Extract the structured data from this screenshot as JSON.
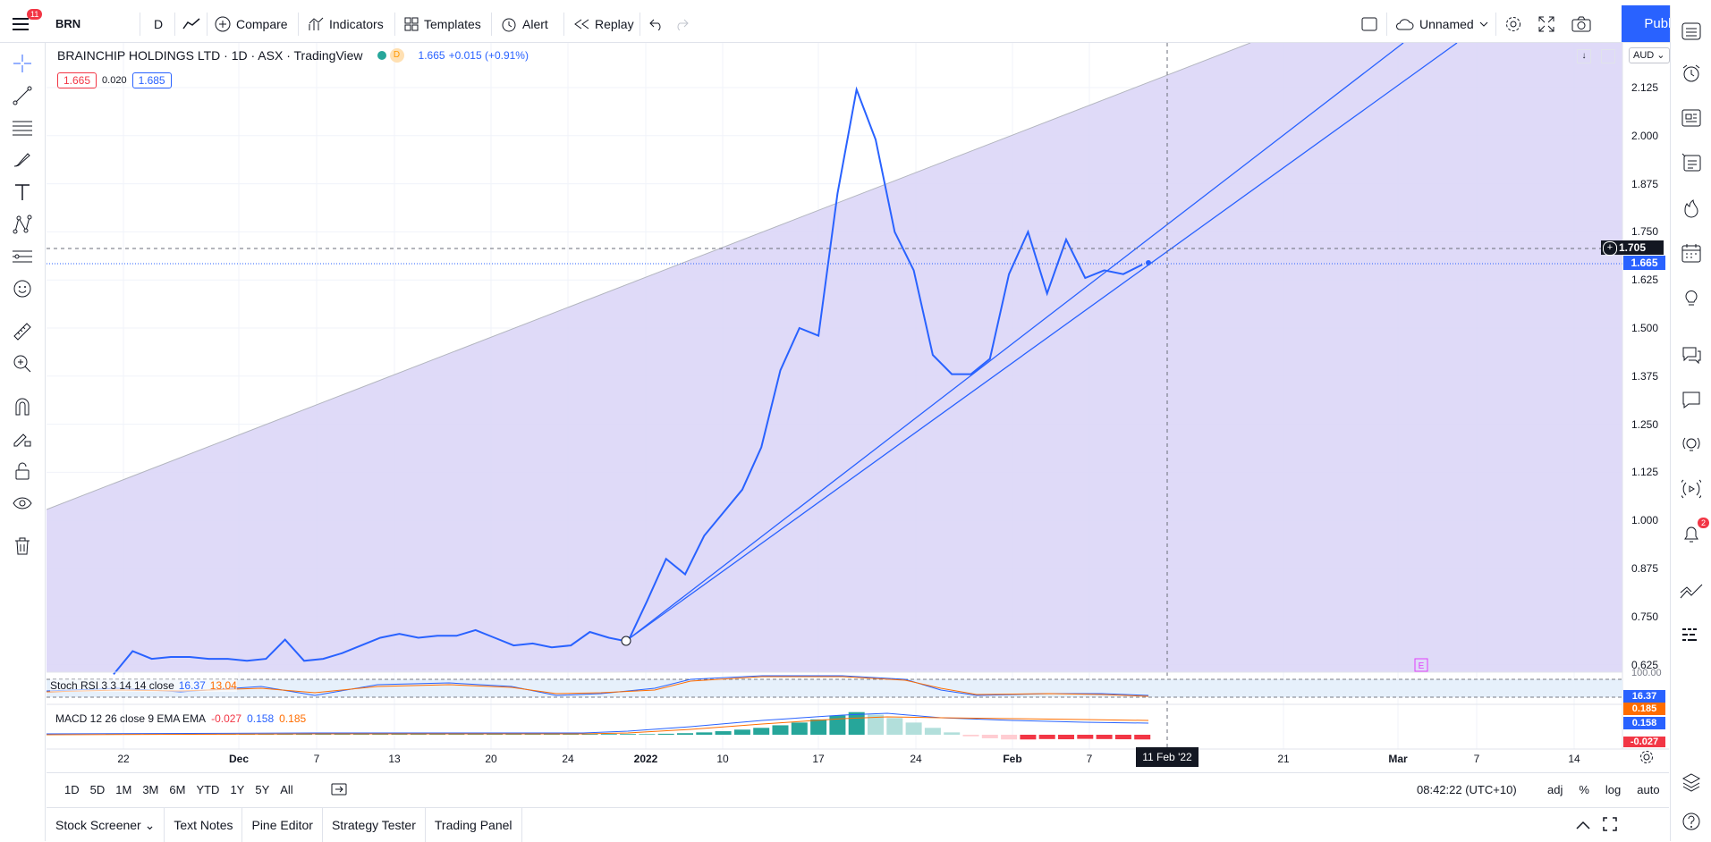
{
  "toolbar": {
    "menu_badge": "11",
    "symbol": "BRN",
    "interval": "D",
    "compare": "Compare",
    "indicators": "Indicators",
    "templates": "Templates",
    "alert": "Alert",
    "replay": "Replay",
    "layout_name": "Unnamed",
    "publish": "Publish"
  },
  "legend": {
    "title": "BRAINCHIP HOLDINGS LTD · 1D · ASX · TradingView",
    "flag": "D",
    "price": "1.665",
    "change": "+0.015 (+0.91%)",
    "bid": "1.665",
    "spread": "0.020",
    "ask": "1.685"
  },
  "currency": "AUD",
  "price_scale": [
    "2.125",
    "2.000",
    "1.875",
    "1.750",
    "1.625",
    "1.500",
    "1.375",
    "1.250",
    "1.125",
    "1.000",
    "0.875",
    "0.750",
    "0.625"
  ],
  "crosshair_price": "1.705",
  "last_price": "1.665",
  "stoch": {
    "label": "Stoch RSI 3 3 14 14 close",
    "k": "16.37",
    "d": "13.04",
    "scale_top": "100.00",
    "badge_k": "16.37"
  },
  "macd": {
    "label": "MACD 12 26 close 9 EMA EMA",
    "hist": "-0.027",
    "macd": "0.158",
    "signal": "0.185",
    "badge_signal": "0.185",
    "badge_macd": "0.158",
    "badge_hist": "-0.027"
  },
  "earnings_marker": "E",
  "time_scale": [
    "22",
    "Dec",
    "7",
    "13",
    "20",
    "24",
    "2022",
    "10",
    "17",
    "24",
    "Feb",
    "7",
    "21",
    "Mar",
    "7",
    "14"
  ],
  "crosshair_date": "11 Feb '22",
  "ranges": [
    "1D",
    "5D",
    "1M",
    "3M",
    "6M",
    "YTD",
    "1Y",
    "5Y",
    "All"
  ],
  "clock": "08:42:22 (UTC+10)",
  "scale_opts": [
    "adj",
    "%",
    "log",
    "auto"
  ],
  "footer_tabs": [
    "Stock Screener",
    "Text Notes",
    "Pine Editor",
    "Strategy Tester",
    "Trading Panel"
  ],
  "notif_badge": "2",
  "colors": {
    "accent": "#2962ff",
    "line": "#2962ff",
    "fill": "#dcd6f7",
    "orange": "#ff6d00",
    "red": "#f23645",
    "green": "#26a69a"
  },
  "chart_data": {
    "type": "line",
    "series_price": [
      0.6,
      0.66,
      0.64,
      0.645,
      0.645,
      0.64,
      0.64,
      0.635,
      0.64,
      0.69,
      0.635,
      0.64,
      0.655,
      0.675,
      0.695,
      0.705,
      0.695,
      0.7,
      0.7,
      0.715,
      0.695,
      0.675,
      0.68,
      0.67,
      0.675,
      0.71,
      0.695,
      0.685,
      0.79,
      0.9,
      0.86,
      0.96,
      1.02,
      1.08,
      1.19,
      1.39,
      1.5,
      1.48,
      1.85,
      2.12,
      1.99,
      1.75,
      1.65,
      1.43,
      1.38,
      1.38,
      1.42,
      1.64,
      1.75,
      1.59,
      1.73,
      1.63,
      1.65,
      1.64,
      1.665
    ],
    "ylim": [
      0.6,
      2.22
    ]
  }
}
